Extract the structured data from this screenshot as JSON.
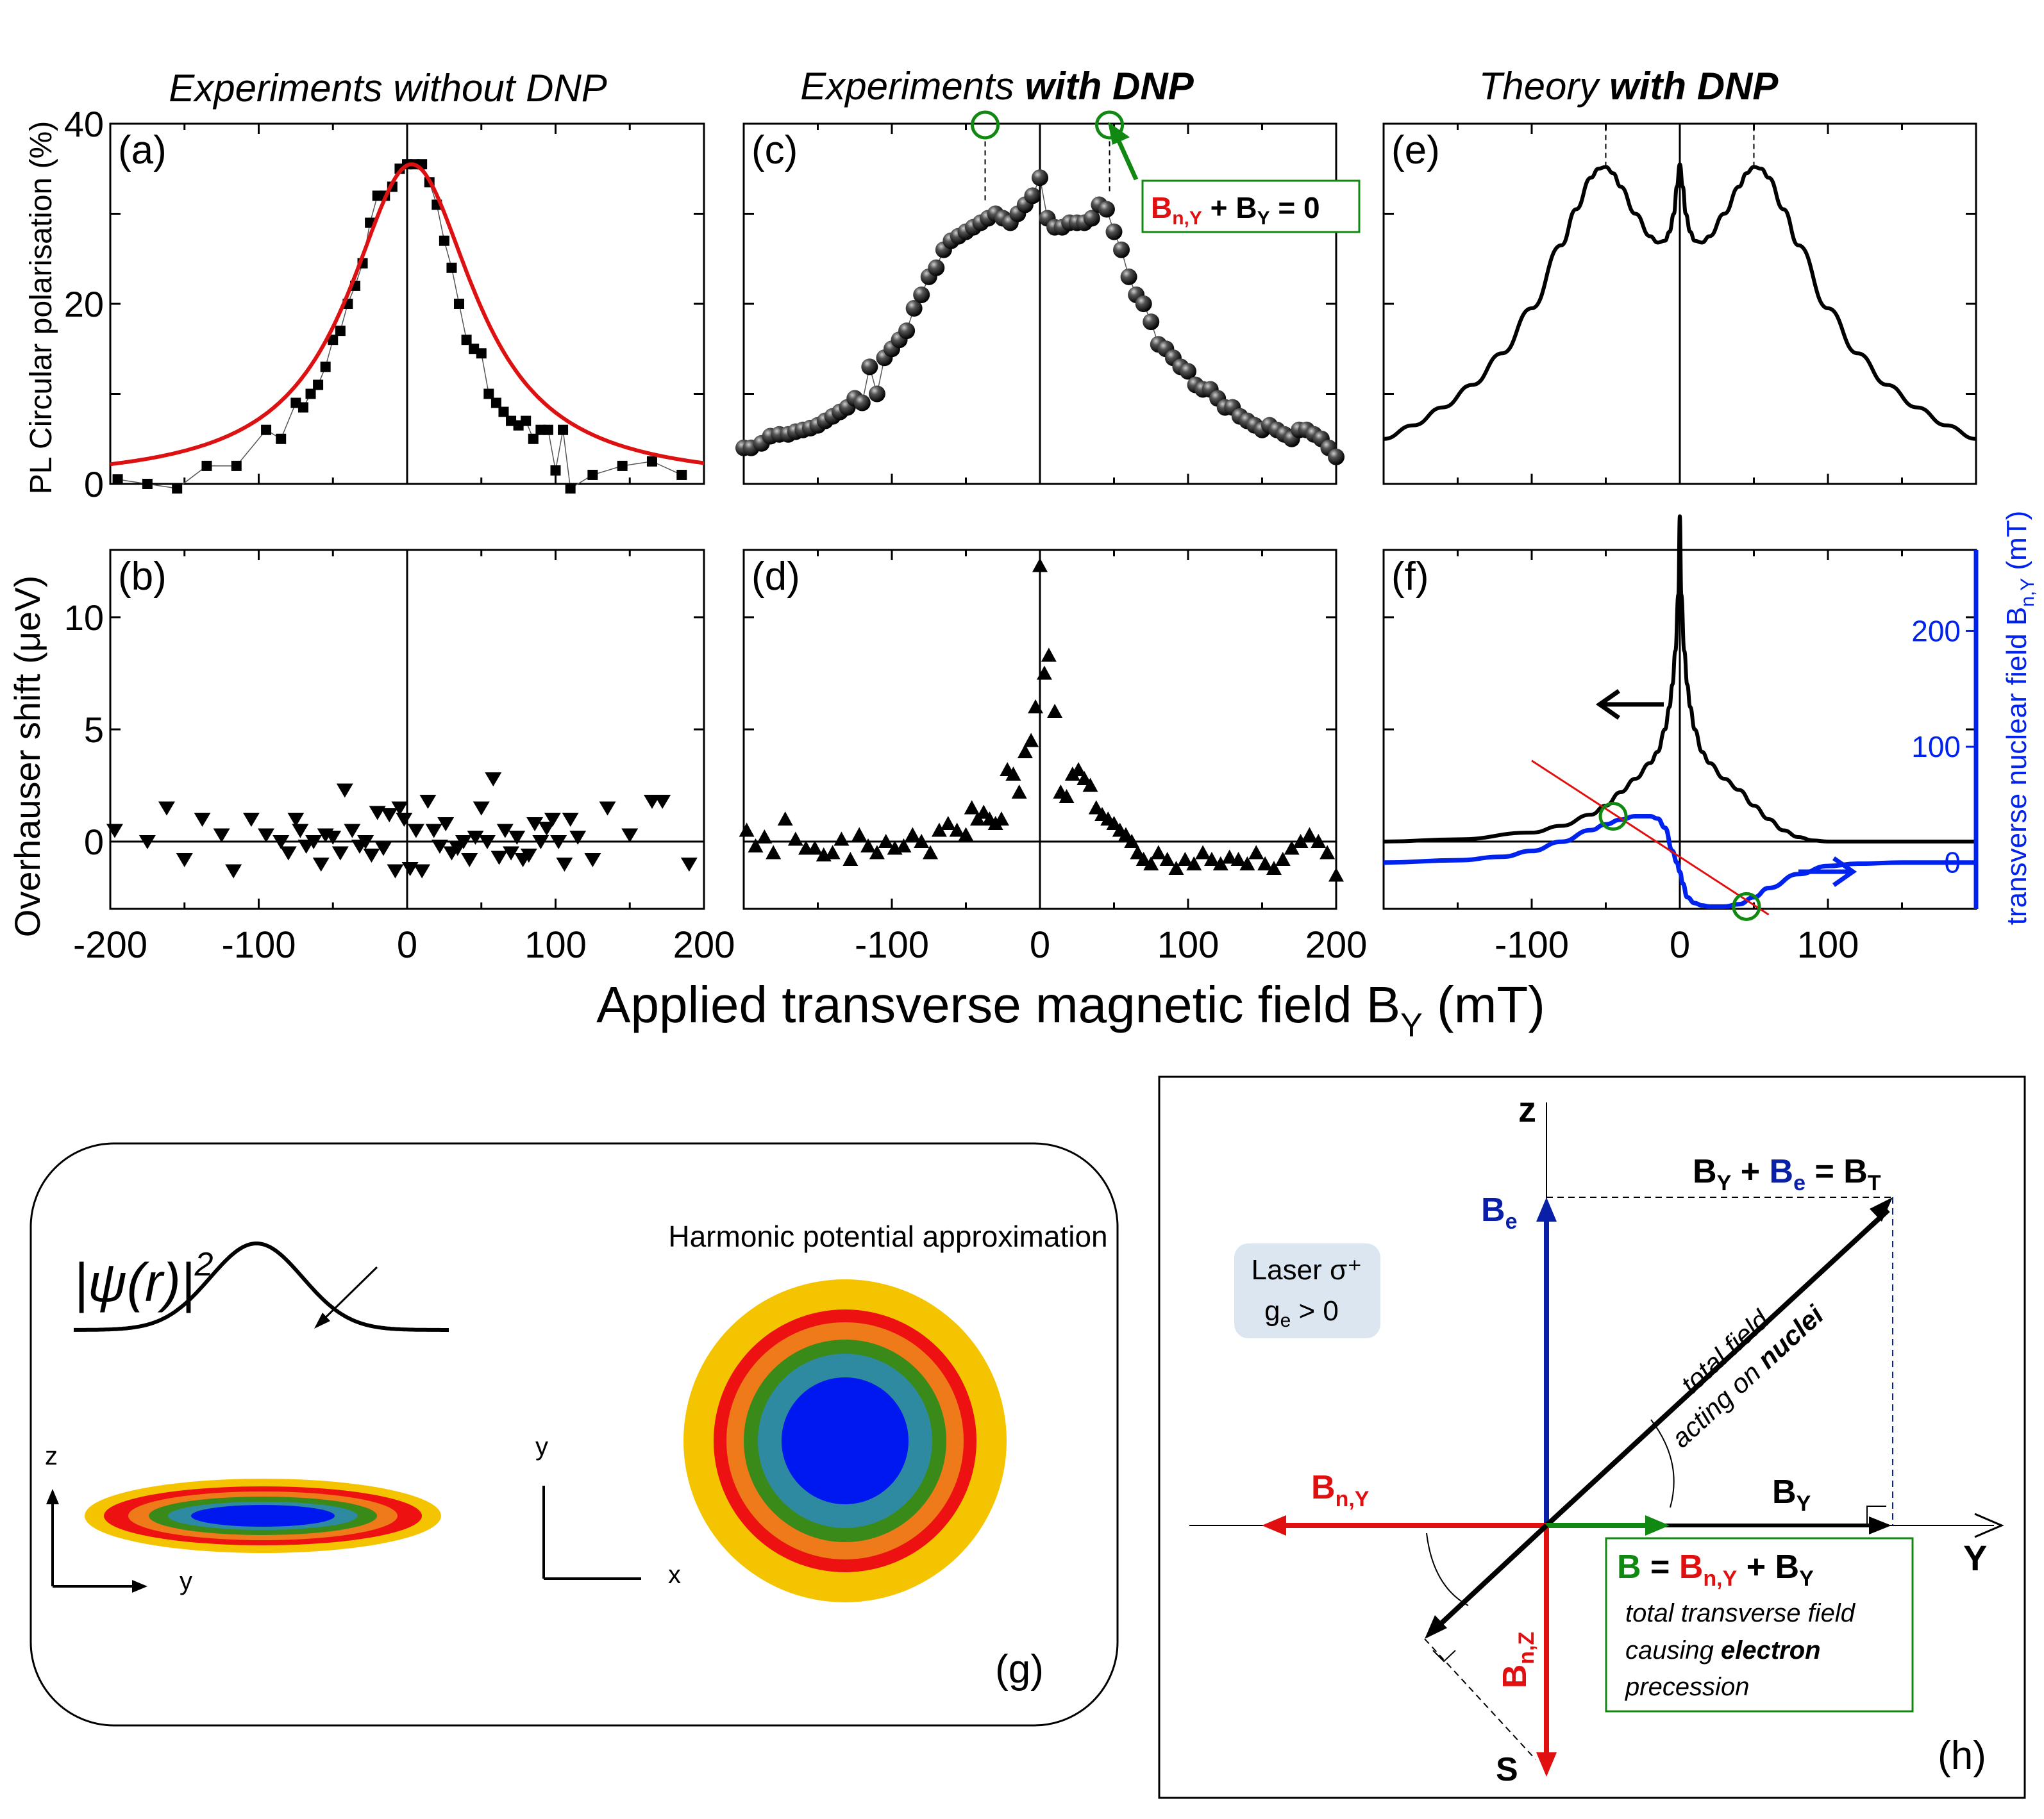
{
  "colors": {
    "fit_red": "#dd1111",
    "theory_blue": "#0022ee",
    "annot_green": "#118811",
    "be_blue": "#0a1fa8",
    "bny_red": "#e01010",
    "laser_box": "#dce6f1",
    "ring_colors": [
      "#f5c400",
      "#ee1111",
      "#ef7a1a",
      "#3a8a1a",
      "#2d8aa0",
      "#0018f0"
    ]
  },
  "titles": {
    "col_a": "Experiments without DNP",
    "col_c_plain": "Experiments ",
    "col_c_bold": "with DNP",
    "col_e_plain": "Theory ",
    "col_e_bold": "with DNP"
  },
  "axis": {
    "ylabel_top": "PL Circular polarisation (%)",
    "ylabel_bottom": "Overhauser shift (μeV)",
    "xlabel": "Applied transverse magnetic field B",
    "xlabel_sub": "Y",
    "xlabel_unit": " (mT)",
    "ylabel_right": "transverse nuclear field B",
    "ylabel_right_sub": "n,Y",
    "ylabel_right_unit": " (mT)",
    "top_ticks": [
      "0",
      "20",
      "40"
    ],
    "bottom_ticks": [
      "0",
      "5",
      "10"
    ],
    "x_ticks_ab": [
      "-200",
      "-100",
      "0",
      "100",
      "200"
    ],
    "x_ticks_cd": [
      "-100",
      "0",
      "100",
      "200"
    ],
    "x_ticks_f": [
      "-100",
      "0",
      "100"
    ],
    "right_ticks": [
      "0",
      "100",
      "200"
    ]
  },
  "panel_labels": {
    "a": "(a)",
    "b": "(b)",
    "c": "(c)",
    "d": "(d)",
    "e": "(e)",
    "f": "(f)",
    "g": "(g)",
    "h": "(h)"
  },
  "annotation_c": {
    "b": "B",
    "sub": "n,Y",
    "rest": " + B",
    "sub2": "Y",
    "tail": " = 0"
  },
  "chart_data": [
    {
      "panel": "a",
      "type": "scatter",
      "xlim": [
        -200,
        200
      ],
      "ylim": [
        0,
        40
      ],
      "series": [
        {
          "marker": "square",
          "x": [
            -195,
            -175,
            -155,
            -135,
            -115,
            -95,
            -85,
            -75,
            -70,
            -65,
            -60,
            -55,
            -50,
            -45,
            -40,
            -35,
            -30,
            -25,
            -20,
            -15,
            -10,
            -5,
            0,
            5,
            10,
            15,
            20,
            25,
            30,
            35,
            40,
            45,
            50,
            55,
            60,
            65,
            70,
            75,
            80,
            85,
            90,
            95,
            100,
            105,
            110,
            125,
            145,
            165,
            185
          ],
          "y": [
            0.5,
            0,
            -0.5,
            2,
            2,
            6,
            5,
            9,
            8.5,
            10,
            11,
            13,
            16,
            17,
            20,
            22,
            24.5,
            29,
            32,
            32,
            33,
            35,
            35.5,
            35.5,
            35.5,
            33.5,
            31,
            27,
            24,
            20,
            16,
            15,
            14.5,
            10,
            9,
            8,
            7,
            6.5,
            7,
            5,
            6,
            6,
            1.5,
            6,
            -0.5,
            1,
            2,
            2.5,
            1
          ]
        },
        {
          "type": "line",
          "fit": "lorentzian",
          "center": 3,
          "amplitude": 35.5,
          "hwhm": 52
        }
      ]
    },
    {
      "panel": "b",
      "type": "scatter",
      "xlim": [
        -200,
        200
      ],
      "ylim": [
        -3,
        13
      ],
      "series": [
        {
          "marker": "triangle-down",
          "x": [
            -197,
            -175,
            -162,
            -150,
            -138,
            -125,
            -117,
            -105,
            -95,
            -85,
            -80,
            -75,
            -72,
            -68,
            -63,
            -58,
            -55,
            -50,
            -45,
            -42,
            -37,
            -32,
            -28,
            -24,
            -20,
            -16,
            -12,
            -8,
            -5,
            -2,
            2,
            6,
            10,
            14,
            18,
            22,
            26,
            30,
            34,
            38,
            42,
            46,
            50,
            54,
            58,
            62,
            66,
            70,
            74,
            78,
            82,
            86,
            90,
            94,
            98,
            102,
            106,
            110,
            115,
            125,
            135,
            150,
            165,
            172,
            190
          ],
          "y": [
            0.5,
            0,
            1.5,
            -0.8,
            1,
            0.3,
            -1.3,
            1,
            0.3,
            0,
            -0.5,
            1,
            0.5,
            -0.2,
            0,
            -1,
            0.3,
            0.2,
            -0.5,
            2.3,
            0.5,
            -0.2,
            0,
            -0.6,
            1.3,
            -0.3,
            1.2,
            -1.3,
            1.5,
            1,
            -1.2,
            0.5,
            -1.3,
            1.8,
            0.5,
            -0.2,
            0.8,
            -0.5,
            -0.3,
            0,
            -0.8,
            0.2,
            1.5,
            0,
            2.8,
            -0.7,
            0.5,
            -0.5,
            0.2,
            -0.8,
            -0.6,
            0.8,
            0,
            0.6,
            1,
            0,
            -1,
            1,
            0.2,
            -0.8,
            1.5,
            0.3,
            1.8,
            1.8,
            -1
          ]
        }
      ]
    },
    {
      "panel": "c",
      "type": "scatter",
      "xlim": [
        -200,
        200
      ],
      "ylim": [
        0,
        40
      ],
      "series": [
        {
          "marker": "sphere",
          "x": [
            -200,
            -195,
            -188,
            -182,
            -176,
            -170,
            -165,
            -160,
            -155,
            -150,
            -145,
            -140,
            -135,
            -130,
            -125,
            -120,
            -115,
            -110,
            -105,
            -100,
            -95,
            -90,
            -85,
            -80,
            -75,
            -70,
            -65,
            -60,
            -55,
            -50,
            -45,
            -40,
            -35,
            -30,
            -25,
            -20,
            -15,
            -10,
            -5,
            0,
            5,
            10,
            15,
            20,
            25,
            30,
            35,
            40,
            45,
            50,
            55,
            60,
            65,
            70,
            75,
            80,
            85,
            90,
            95,
            100,
            105,
            110,
            115,
            120,
            125,
            130,
            135,
            140,
            145,
            150,
            155,
            160,
            165,
            170,
            175,
            180,
            185,
            190,
            195,
            200
          ],
          "y": [
            4,
            4,
            4.5,
            5.3,
            5.5,
            5.5,
            5.8,
            6,
            6.2,
            6.5,
            7,
            7.5,
            8,
            8.5,
            9.5,
            9,
            13,
            10,
            14,
            15,
            16,
            17,
            19.5,
            21,
            23,
            24,
            26,
            27,
            27.5,
            28,
            28.5,
            29,
            29.5,
            30,
            29.5,
            29,
            30,
            31,
            32,
            34,
            29.5,
            28.5,
            28.5,
            29,
            29,
            29,
            29.5,
            31,
            30.5,
            28,
            26,
            23,
            21,
            20,
            18,
            15.5,
            15,
            14,
            13,
            12.5,
            11,
            10.5,
            10.5,
            9.5,
            8.5,
            8.5,
            7.5,
            7,
            6.5,
            6,
            6.5,
            6,
            5.5,
            5,
            6,
            6,
            5.5,
            5,
            4,
            3
          ]
        }
      ]
    },
    {
      "panel": "d",
      "type": "scatter",
      "xlim": [
        -200,
        200
      ],
      "ylim": [
        -3,
        13
      ],
      "series": [
        {
          "marker": "triangle-up",
          "x": [
            -198,
            -192,
            -186,
            -180,
            -172,
            -165,
            -158,
            -152,
            -146,
            -140,
            -134,
            -128,
            -122,
            -116,
            -110,
            -104,
            -98,
            -92,
            -86,
            -80,
            -74,
            -68,
            -62,
            -56,
            -50,
            -46,
            -42,
            -38,
            -34,
            -30,
            -26,
            -22,
            -18,
            -14,
            -10,
            -6,
            -3,
            0,
            3,
            6,
            10,
            14,
            18,
            22,
            26,
            30,
            34,
            38,
            42,
            46,
            50,
            54,
            58,
            62,
            66,
            70,
            75,
            80,
            86,
            92,
            98,
            104,
            110,
            116,
            122,
            128,
            134,
            140,
            146,
            152,
            158,
            164,
            170,
            176,
            182,
            188,
            194,
            200
          ],
          "y": [
            0.5,
            -0.2,
            0.2,
            -0.5,
            1,
            0.1,
            -0.3,
            -0.3,
            -0.6,
            -0.5,
            0.1,
            -0.8,
            0.3,
            -0.2,
            -0.5,
            0,
            -0.3,
            -0.2,
            0.3,
            0,
            -0.5,
            0.5,
            0.8,
            0.5,
            0.3,
            1.5,
            1,
            1.3,
            1,
            0.8,
            1,
            3.2,
            3,
            2.2,
            4,
            4.5,
            6,
            12.3,
            7.5,
            8.3,
            5.8,
            2.2,
            2,
            3,
            3.2,
            2.8,
            2.5,
            1.5,
            1.2,
            1,
            0.8,
            0.5,
            0.3,
            0,
            -0.5,
            -0.8,
            -1,
            -0.5,
            -0.8,
            -1.2,
            -0.8,
            -1,
            -0.5,
            -0.8,
            -1,
            -0.7,
            -0.8,
            -1,
            -0.5,
            -1,
            -1.2,
            -0.8,
            -0.3,
            0,
            0.3,
            0,
            -0.5,
            -1.5
          ]
        }
      ]
    },
    {
      "panel": "e",
      "type": "line",
      "xlim": [
        -200,
        200
      ],
      "ylim": [
        0,
        40
      ],
      "series": [
        {
          "x": [
            -200,
            -180,
            -160,
            -140,
            -120,
            -100,
            -80,
            -70,
            -60,
            -55,
            -50,
            -45,
            -40,
            -30,
            -20,
            -15,
            -10,
            -7,
            -4,
            -2,
            0,
            2,
            4,
            7,
            10,
            15,
            20,
            30,
            40,
            45,
            50,
            55,
            60,
            70,
            80,
            100,
            120,
            140,
            160,
            180,
            200
          ],
          "y": [
            5,
            6.5,
            8.5,
            11,
            14.5,
            19.5,
            26.5,
            30.5,
            34,
            35,
            35.2,
            34.5,
            33,
            30,
            27.5,
            26.8,
            27,
            28,
            30,
            33,
            35.5,
            33,
            30,
            28,
            27,
            26.8,
            27.5,
            30,
            33,
            34.5,
            35.2,
            35,
            34,
            30.5,
            26.5,
            19.5,
            14.5,
            11,
            8.5,
            6.5,
            5
          ]
        }
      ]
    },
    {
      "panel": "f",
      "type": "line",
      "xlim": [
        -200,
        200
      ],
      "ylim": [
        -3,
        13
      ],
      "ylim_right": [
        -40,
        270
      ],
      "series": [
        {
          "axis": "left",
          "x": [
            -200,
            -150,
            -100,
            -80,
            -60,
            -50,
            -40,
            -30,
            -20,
            -15,
            -10,
            -7,
            -5,
            -3,
            -1,
            0,
            1,
            3,
            5,
            7,
            10,
            15,
            20,
            30,
            40,
            50,
            60,
            70,
            80,
            90,
            100,
            110,
            120,
            140,
            170,
            200
          ],
          "y": [
            0,
            0.1,
            0.4,
            0.7,
            1.2,
            1.6,
            2.2,
            2.8,
            3.5,
            4,
            5,
            6,
            7,
            8.5,
            11,
            14.5,
            11,
            8.5,
            7,
            6,
            5,
            4,
            3.5,
            2.8,
            2.3,
            1.6,
            1,
            0.5,
            0.2,
            0.05,
            0,
            0,
            0,
            0,
            0,
            0
          ]
        },
        {
          "axis": "right",
          "x": [
            -200,
            -150,
            -120,
            -100,
            -80,
            -60,
            -50,
            -40,
            -30,
            -20,
            -15,
            -10,
            -5,
            -2,
            0,
            2,
            5,
            10,
            15,
            20,
            30,
            40,
            50,
            60,
            80,
            100,
            120,
            150,
            200
          ],
          "y": [
            0,
            2,
            5,
            10,
            18,
            28,
            33,
            37,
            40,
            40,
            38,
            30,
            10,
            0,
            -8,
            -18,
            -30,
            -35,
            -37,
            -38,
            -38,
            -36,
            -30,
            -22,
            -10,
            -3,
            -1,
            0,
            0
          ]
        },
        {
          "type": "reference-line",
          "x": [
            -100,
            60
          ],
          "y_right": [
            88,
            -45
          ]
        }
      ]
    }
  ],
  "panel_g": {
    "psi_label": "|ψ(r)|",
    "psi_exp": "2",
    "harmonic": "Harmonic potential approximation",
    "z": "z",
    "y": "y",
    "y2": "y",
    "x": "x"
  },
  "panel_h": {
    "z": "z",
    "Y": "Y",
    "S": "S",
    "laser": "Laser σ⁺",
    "ge": "g",
    "ge_sub": "e",
    "ge_rest": " > 0",
    "be": "B",
    "be_sub": "e",
    "by": "B",
    "by_sub": "Y",
    "bny": "B",
    "bny_sub": "n,Y",
    "bnz": "B",
    "bnz_sub": "n,Z",
    "bt_left": "B",
    "bt_left_sub": "Y",
    "bt_plus": " + ",
    "bt_be": "B",
    "bt_be_sub": "e",
    "bt_eq": " = B",
    "bt_sub": "T",
    "total1": "total field",
    "total2a": "acting on ",
    "total2b": "nuclei",
    "eq_b": "B",
    "eq_eq": " = ",
    "eq_bny": "B",
    "eq_bny_sub": "n,Y",
    "eq_plus": " + B",
    "eq_by_sub": "Y",
    "desc1": "total transverse field",
    "desc2a": "causing ",
    "desc2b": "electron",
    "desc3": "precession"
  }
}
